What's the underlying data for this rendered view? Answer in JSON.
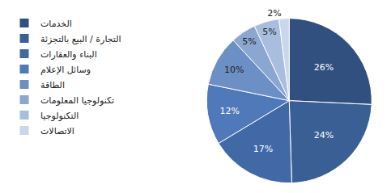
{
  "chart_data": {
    "type": "pie",
    "categories": [
      "الخدمات",
      "التجارة / البيع بالتجزئة",
      "البناء والعقارات",
      "وسائل الإعلام",
      "الطاقة",
      "تكنولوجيا المعلومات",
      "التكنولوجيا",
      "الاتصالات"
    ],
    "values": [
      26,
      24,
      17,
      12,
      10,
      5,
      5,
      2
    ],
    "value_labels": [
      "26%",
      "24%",
      "17%",
      "12%",
      "10%",
      "5%",
      "5%",
      "2%"
    ],
    "colors": [
      "#31507f",
      "#3a5f95",
      "#4169a6",
      "#4f79b8",
      "#6c8fc5",
      "#8aa6d1",
      "#a9bede",
      "#c9d6eb"
    ],
    "data_labels": true,
    "legend": "left"
  }
}
